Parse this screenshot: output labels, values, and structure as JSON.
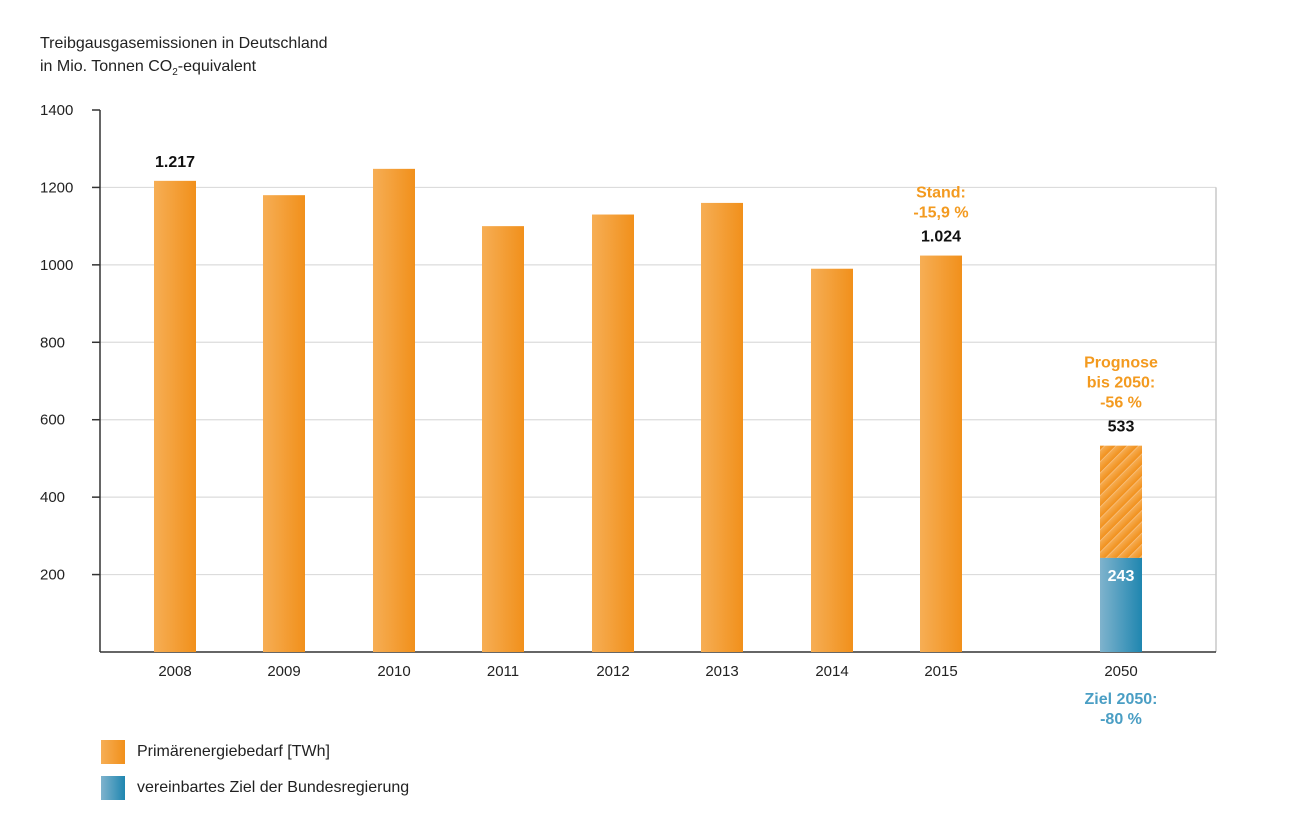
{
  "chart_data": {
    "type": "bar",
    "title": "Treibgausgasemissionen in Deutschland",
    "subtitle_pre": "in Mio. Tonnen CO",
    "subtitle_sub": "2",
    "subtitle_post": "-equivalent",
    "xlabel": "",
    "ylabel": "",
    "ylim": [
      0,
      1400
    ],
    "yticks": [
      200,
      400,
      600,
      800,
      1000,
      1200,
      1400
    ],
    "grid": true,
    "categories": [
      "2008",
      "2009",
      "2010",
      "2011",
      "2012",
      "2013",
      "2014",
      "2015",
      "2050"
    ],
    "series": [
      {
        "name": "Primärenergiebedarf [TWh]",
        "color": "#f39a1f",
        "values": [
          1217,
          1180,
          1248,
          1100,
          1130,
          1160,
          990,
          1024,
          533
        ]
      },
      {
        "name": "vereinbartes Ziel der Bundesregierung",
        "color": "#2a8db5",
        "values": [
          null,
          null,
          null,
          null,
          null,
          null,
          null,
          null,
          243
        ]
      }
    ],
    "data_labels": [
      {
        "category": "2008",
        "text": "1.217"
      },
      {
        "category": "2015",
        "text": "1.024"
      },
      {
        "category": "2050",
        "text": "533"
      },
      {
        "category": "2050",
        "text": "243",
        "inside": true
      }
    ],
    "annotations": [
      {
        "category": "2015",
        "lines": [
          "Stand:",
          "-15,9 %"
        ],
        "color": "#f39a1f"
      },
      {
        "category": "2050",
        "lines": [
          "Prognose",
          "bis 2050:",
          "-56 %"
        ],
        "color": "#f39a1f"
      },
      {
        "category": "2050",
        "lines": [
          "Ziel 2050:",
          "-80 %"
        ],
        "color": "#4a9ec4",
        "below_axis": true
      }
    ],
    "legend": "bottom-left"
  }
}
